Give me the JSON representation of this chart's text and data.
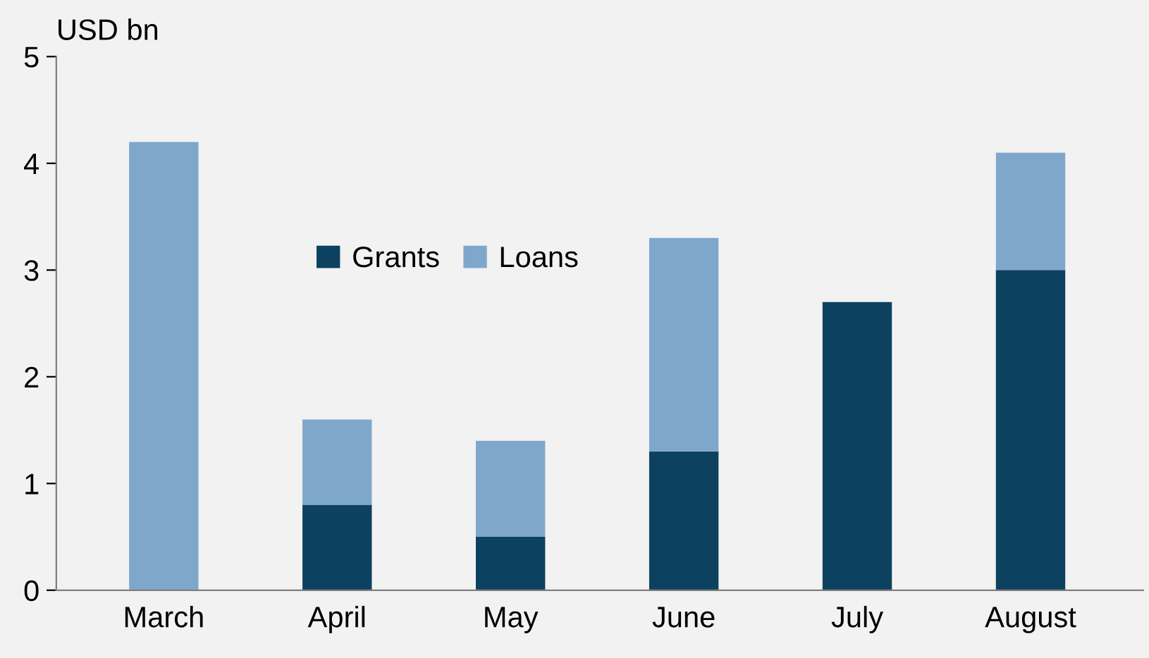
{
  "chart_data": {
    "type": "bar",
    "ylabel": "USD bn",
    "stacked": true,
    "categories": [
      "March",
      "April",
      "May",
      "June",
      "July",
      "August"
    ],
    "series": [
      {
        "name": "Grants",
        "color": "#0c4160",
        "values": [
          0,
          0.8,
          0.5,
          1.3,
          2.7,
          3.0
        ]
      },
      {
        "name": "Loans",
        "color": "#7fa7cb",
        "values": [
          4.2,
          0.8,
          0.9,
          2.0,
          0,
          1.1
        ]
      }
    ],
    "ylim": [
      0,
      5
    ],
    "yticks": [
      0,
      1,
      2,
      3,
      4,
      5
    ],
    "grid": false,
    "legend": "center"
  }
}
